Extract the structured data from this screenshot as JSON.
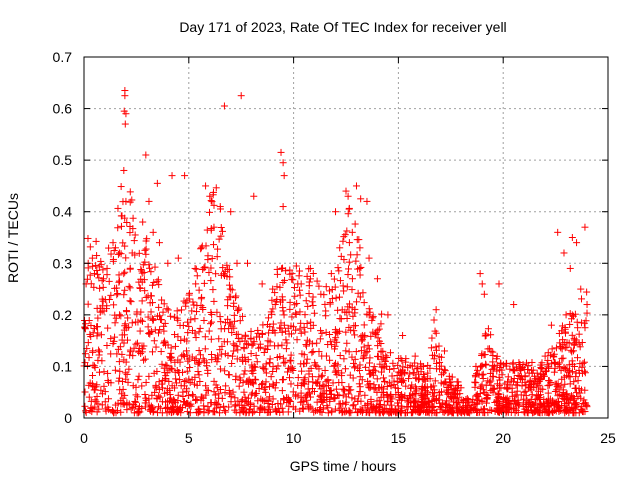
{
  "chart_data": {
    "type": "scatter",
    "title": "Day 171 of 2023, Rate Of TEC Index for receiver yell",
    "xlabel": "GPS time / hours",
    "ylabel": "ROTI / TECUs",
    "xlim": [
      0,
      25
    ],
    "ylim": [
      0,
      0.7
    ],
    "xticks": [
      0,
      5,
      10,
      15,
      20,
      25
    ],
    "yticks": [
      0,
      0.1,
      0.2,
      0.3,
      0.4,
      0.5,
      0.6,
      0.7
    ],
    "xtick_labels": [
      "0",
      "5",
      "10",
      "15",
      "20",
      "25"
    ],
    "ytick_labels": [
      "0",
      "0.1",
      "0.2",
      "0.3",
      "0.4",
      "0.5",
      "0.6",
      "0.7"
    ],
    "grid": true,
    "marker": "+",
    "color": "#ff0000",
    "series": [
      {
        "name": "ROTI",
        "points": [
          [
            1.95,
            0.635
          ],
          [
            1.95,
            0.625
          ],
          [
            1.92,
            0.595
          ],
          [
            2.0,
            0.59
          ],
          [
            1.97,
            0.57
          ],
          [
            6.7,
            0.605
          ],
          [
            7.5,
            0.625
          ],
          [
            2.95,
            0.51
          ],
          [
            9.4,
            0.515
          ],
          [
            9.5,
            0.495
          ],
          [
            9.55,
            0.47
          ],
          [
            1.9,
            0.48
          ],
          [
            4.8,
            0.47
          ],
          [
            3.5,
            0.455
          ],
          [
            5.8,
            0.45
          ],
          [
            13.0,
            0.45
          ],
          [
            12.5,
            0.44
          ],
          [
            12.6,
            0.43
          ],
          [
            13.2,
            0.425
          ],
          [
            6.0,
            0.43
          ],
          [
            6.5,
            0.41
          ],
          [
            7.0,
            0.4
          ],
          [
            8.1,
            0.43
          ],
          [
            3.1,
            0.42
          ],
          [
            2.0,
            0.42
          ],
          [
            9.5,
            0.41
          ],
          [
            4.2,
            0.47
          ],
          [
            13.5,
            0.42
          ],
          [
            12.0,
            0.4
          ],
          [
            23.3,
            0.35
          ],
          [
            23.9,
            0.37
          ],
          [
            23.5,
            0.34
          ],
          [
            22.6,
            0.36
          ],
          [
            22.9,
            0.32
          ],
          [
            23.2,
            0.29
          ],
          [
            18.9,
            0.28
          ],
          [
            19.0,
            0.26
          ],
          [
            19.8,
            0.26
          ],
          [
            19.1,
            0.24
          ],
          [
            20.5,
            0.22
          ],
          [
            16.8,
            0.21
          ],
          [
            16.7,
            0.19
          ],
          [
            16.6,
            0.155
          ],
          [
            17.2,
            0.13
          ],
          [
            18.7,
            0.1
          ],
          [
            19.5,
            0.08
          ],
          [
            21.0,
            0.05
          ],
          [
            21.5,
            0.07
          ],
          [
            22.0,
            0.12
          ],
          [
            22.3,
            0.18
          ],
          [
            23.0,
            0.2
          ],
          [
            23.7,
            0.25
          ],
          [
            24.0,
            0.22
          ],
          [
            0.1,
            0.26
          ],
          [
            0.2,
            0.3
          ],
          [
            0.4,
            0.31
          ],
          [
            0.5,
            0.28
          ],
          [
            1.1,
            0.29
          ],
          [
            1.5,
            0.33
          ],
          [
            2.3,
            0.32
          ],
          [
            2.8,
            0.38
          ],
          [
            3.3,
            0.36
          ],
          [
            3.6,
            0.34
          ],
          [
            4.0,
            0.3
          ],
          [
            4.5,
            0.31
          ],
          [
            5.3,
            0.29
          ],
          [
            5.6,
            0.33
          ],
          [
            6.2,
            0.37
          ],
          [
            7.3,
            0.3
          ],
          [
            7.8,
            0.3
          ],
          [
            8.5,
            0.26
          ],
          [
            9.0,
            0.25
          ],
          [
            10.2,
            0.26
          ],
          [
            10.8,
            0.29
          ],
          [
            11.3,
            0.24
          ],
          [
            11.8,
            0.28
          ],
          [
            12.2,
            0.33
          ],
          [
            12.8,
            0.36
          ],
          [
            13.6,
            0.31
          ],
          [
            14.0,
            0.27
          ],
          [
            14.5,
            0.2
          ],
          [
            15.2,
            0.16
          ],
          [
            15.8,
            0.12
          ],
          [
            16.2,
            0.1
          ],
          [
            17.5,
            0.07
          ]
        ]
      }
    ]
  }
}
